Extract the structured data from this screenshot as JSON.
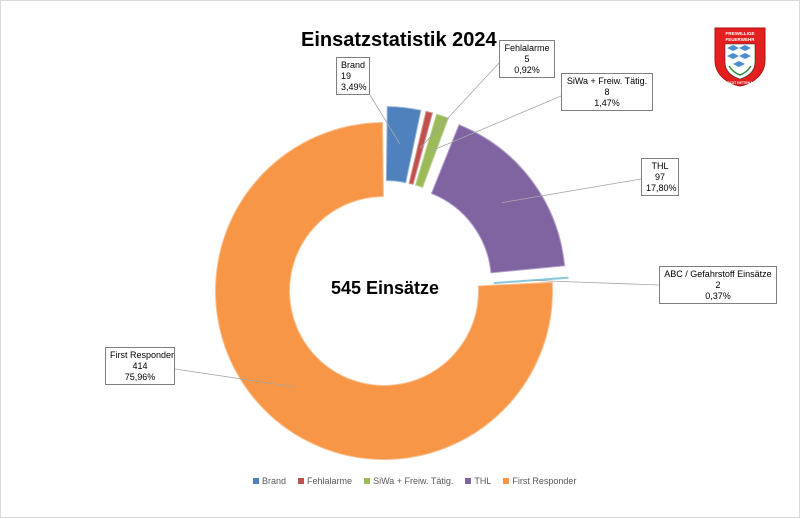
{
  "title": "Einsatzstatistik 2024",
  "center_label": "545 Einsätze",
  "chart_data": {
    "type": "pie",
    "donut": true,
    "exploded": true,
    "title": "Einsatzstatistik 2024",
    "total_label": "545 Einsätze",
    "legend_position": "bottom",
    "slices": [
      {
        "category": "Brand",
        "count": "19",
        "percent_label": "3,49%",
        "value": 19,
        "color": "#4f81bd"
      },
      {
        "category": "Fehlalarme",
        "count": "5",
        "percent_label": "0,92%",
        "value": 5,
        "color": "#c0504d"
      },
      {
        "category": "SiWa + Freiw. Tätig.",
        "count": "8",
        "percent_label": "1,47%",
        "value": 8,
        "color": "#9bbb59"
      },
      {
        "category": "THL",
        "count": "97",
        "percent_label": "17,80%",
        "value": 97,
        "color": "#8064a2"
      },
      {
        "category": "ABC / Gefahrstoff Einsätze",
        "count": "2",
        "percent_label": "0,37%",
        "value": 2,
        "color": "#4bacc6"
      },
      {
        "category": "First Responder",
        "count": "414",
        "percent_label": "75,96%",
        "value": 414,
        "color": "#f79646"
      }
    ],
    "legend": [
      "Brand",
      "Fehlalarme",
      "SiWa + Freiw. Tätig.",
      "THL",
      "First Responder"
    ]
  },
  "logo": {
    "top_text": "FREIWILLIGE",
    "mid_text": "FEUERWEHR",
    "bottom_text": "STADT NITTENAU",
    "red": "#e41f1f",
    "blue": "#4a8ed0"
  }
}
